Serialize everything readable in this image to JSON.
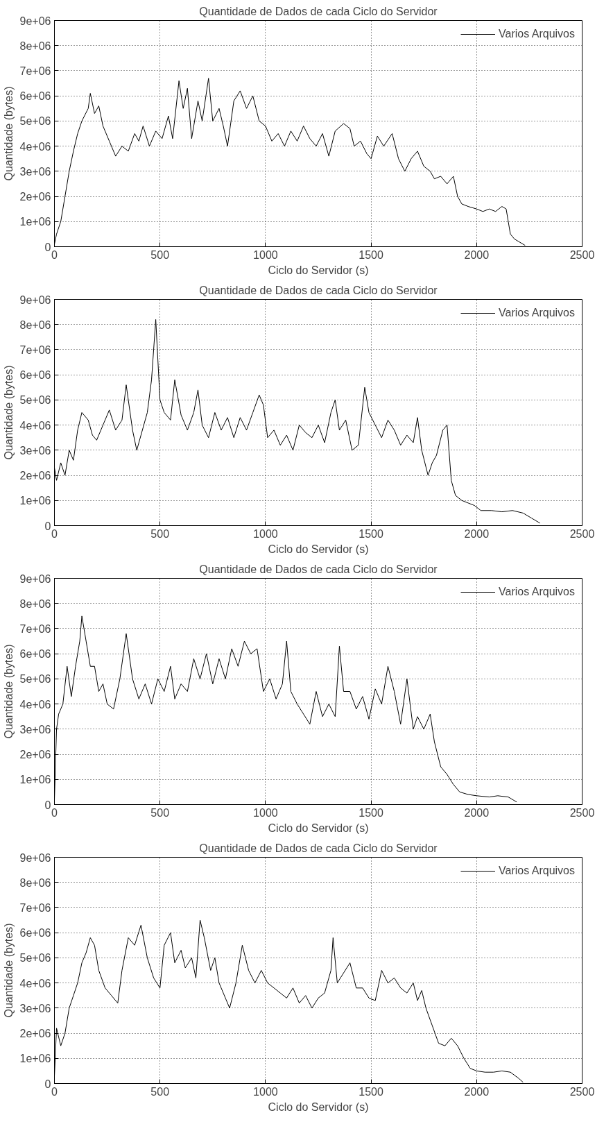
{
  "chart_data": [
    {
      "type": "line",
      "title": "Quantidade de Dados de cada Ciclo do Servidor",
      "xlabel": "Ciclo do Servidor (s)",
      "ylabel": "Quantidade (bytes)",
      "xlim": [
        0,
        2500
      ],
      "ylim": [
        0,
        9000000
      ],
      "xticks": [
        0,
        500,
        1000,
        1500,
        2000,
        2500
      ],
      "yticks": [
        0,
        {
          "value": 1000000,
          "label": "1e+06"
        },
        {
          "value": 2000000,
          "label": "2e+06"
        },
        {
          "value": 3000000,
          "label": "3e+06"
        },
        {
          "value": 4000000,
          "label": "4e+06"
        },
        {
          "value": 5000000,
          "label": "5e+06"
        },
        {
          "value": 6000000,
          "label": "6e+06"
        },
        {
          "value": 7000000,
          "label": "7e+06"
        },
        {
          "value": 8000000,
          "label": "8e+06"
        },
        {
          "value": 9000000,
          "label": "9e+06"
        }
      ],
      "grid": true,
      "legend": "top right",
      "line_style": "solid",
      "series": [
        {
          "name": "Varios Arquivos",
          "color": "#000000",
          "x": [
            0,
            10,
            30,
            50,
            70,
            90,
            110,
            130,
            160,
            170,
            190,
            210,
            230,
            260,
            290,
            320,
            350,
            380,
            400,
            420,
            450,
            480,
            510,
            540,
            560,
            590,
            610,
            630,
            650,
            680,
            700,
            730,
            750,
            780,
            800,
            820,
            850,
            880,
            910,
            940,
            970,
            1000,
            1030,
            1060,
            1090,
            1120,
            1150,
            1180,
            1210,
            1240,
            1270,
            1300,
            1330,
            1370,
            1400,
            1420,
            1450,
            1480,
            1500,
            1530,
            1560,
            1600,
            1630,
            1660,
            1690,
            1720,
            1750,
            1780,
            1800,
            1830,
            1860,
            1890,
            1910,
            1930,
            1960,
            2000,
            2030,
            2060,
            2090,
            2120,
            2140,
            2160,
            2180,
            2200,
            2230
          ],
          "values": [
            100000,
            500000,
            1000000,
            2000000,
            3000000,
            3800000,
            4500000,
            5000000,
            5500000,
            6100000,
            5300000,
            5600000,
            4800000,
            4200000,
            3600000,
            4000000,
            3800000,
            4500000,
            4200000,
            4800000,
            4000000,
            4600000,
            4300000,
            5200000,
            4300000,
            6600000,
            5500000,
            6300000,
            4300000,
            5800000,
            5000000,
            6700000,
            5000000,
            5500000,
            4800000,
            4000000,
            5800000,
            6200000,
            5500000,
            6000000,
            5000000,
            4800000,
            4200000,
            4500000,
            4000000,
            4600000,
            4200000,
            4800000,
            4300000,
            4000000,
            4500000,
            3600000,
            4600000,
            4900000,
            4700000,
            4000000,
            4200000,
            3700000,
            3500000,
            4400000,
            4000000,
            4500000,
            3500000,
            3000000,
            3500000,
            3800000,
            3200000,
            3000000,
            2700000,
            2800000,
            2500000,
            2800000,
            2000000,
            1700000,
            1600000,
            1500000,
            1400000,
            1500000,
            1400000,
            1600000,
            1500000,
            500000,
            300000,
            200000,
            50000
          ]
        }
      ]
    },
    {
      "type": "line",
      "title": "Quantidade de Dados de cada Ciclo do Servidor",
      "xlabel": "Ciclo do Servidor (s)",
      "ylabel": "Quantidade (bytes)",
      "xlim": [
        0,
        2500
      ],
      "ylim": [
        0,
        9000000
      ],
      "xticks": [
        0,
        500,
        1000,
        1500,
        2000,
        2500
      ],
      "yticks": [
        0,
        {
          "value": 1000000,
          "label": "1e+06"
        },
        {
          "value": 2000000,
          "label": "2e+06"
        },
        {
          "value": 3000000,
          "label": "3e+06"
        },
        {
          "value": 4000000,
          "label": "4e+06"
        },
        {
          "value": 5000000,
          "label": "5e+06"
        },
        {
          "value": 6000000,
          "label": "6e+06"
        },
        {
          "value": 7000000,
          "label": "7e+06"
        },
        {
          "value": 8000000,
          "label": "8e+06"
        },
        {
          "value": 9000000,
          "label": "9e+06"
        }
      ],
      "grid": true,
      "legend": "top right",
      "line_style": "solid",
      "series": [
        {
          "name": "Varios Arquivos",
          "color": "#000000",
          "x": [
            0,
            10,
            30,
            50,
            70,
            90,
            110,
            130,
            160,
            180,
            200,
            230,
            260,
            290,
            320,
            340,
            370,
            390,
            410,
            440,
            460,
            480,
            500,
            520,
            550,
            570,
            600,
            630,
            660,
            680,
            700,
            730,
            760,
            790,
            820,
            850,
            880,
            910,
            940,
            970,
            990,
            1010,
            1040,
            1070,
            1100,
            1130,
            1160,
            1190,
            1220,
            1250,
            1280,
            1310,
            1330,
            1350,
            1380,
            1410,
            1440,
            1470,
            1490,
            1520,
            1550,
            1580,
            1610,
            1640,
            1670,
            1700,
            1720,
            1740,
            1770,
            1790,
            1810,
            1840,
            1860,
            1880,
            1900,
            1930,
            1960,
            1990,
            2020,
            2070,
            2120,
            2170,
            2220,
            2260,
            2300
          ],
          "values": [
            2300000,
            1800000,
            2500000,
            2000000,
            3000000,
            2600000,
            3800000,
            4500000,
            4200000,
            3600000,
            3400000,
            4000000,
            4600000,
            3800000,
            4200000,
            5600000,
            3800000,
            3000000,
            3600000,
            4500000,
            5800000,
            8200000,
            5000000,
            4500000,
            4200000,
            5800000,
            4400000,
            3800000,
            4500000,
            5400000,
            4000000,
            3500000,
            4500000,
            3800000,
            4300000,
            3500000,
            4300000,
            3800000,
            4500000,
            5200000,
            4800000,
            3500000,
            3800000,
            3200000,
            3600000,
            3000000,
            4000000,
            3700000,
            3500000,
            4000000,
            3300000,
            4500000,
            5000000,
            3800000,
            4200000,
            3000000,
            3200000,
            5500000,
            4500000,
            4000000,
            3500000,
            4200000,
            3800000,
            3200000,
            3600000,
            3300000,
            4300000,
            3000000,
            2000000,
            2500000,
            2800000,
            3800000,
            4000000,
            1800000,
            1200000,
            1000000,
            900000,
            800000,
            600000,
            600000,
            550000,
            600000,
            500000,
            300000,
            100000
          ]
        }
      ]
    },
    {
      "type": "line",
      "title": "Quantidade de Dados de cada Ciclo do Servidor",
      "xlabel": "Ciclo do Servidor (s)",
      "ylabel": "Quantidade (bytes)",
      "xlim": [
        0,
        2500
      ],
      "ylim": [
        0,
        9000000
      ],
      "xticks": [
        0,
        500,
        1000,
        1500,
        2000,
        2500
      ],
      "yticks": [
        0,
        {
          "value": 1000000,
          "label": "1e+06"
        },
        {
          "value": 2000000,
          "label": "2e+06"
        },
        {
          "value": 3000000,
          "label": "3e+06"
        },
        {
          "value": 4000000,
          "label": "4e+06"
        },
        {
          "value": 5000000,
          "label": "5e+06"
        },
        {
          "value": 6000000,
          "label": "6e+06"
        },
        {
          "value": 7000000,
          "label": "7e+06"
        },
        {
          "value": 8000000,
          "label": "8e+06"
        },
        {
          "value": 9000000,
          "label": "9e+06"
        }
      ],
      "grid": true,
      "legend": "top right",
      "line_style": "solid",
      "series": [
        {
          "name": "Varios Arquivos",
          "color": "#000000",
          "x": [
            0,
            10,
            20,
            40,
            60,
            80,
            100,
            120,
            130,
            150,
            170,
            190,
            210,
            230,
            250,
            280,
            310,
            340,
            370,
            400,
            430,
            460,
            490,
            520,
            550,
            570,
            600,
            630,
            660,
            690,
            720,
            750,
            780,
            810,
            840,
            870,
            900,
            930,
            960,
            990,
            1020,
            1050,
            1080,
            1100,
            1120,
            1150,
            1180,
            1210,
            1240,
            1270,
            1300,
            1330,
            1350,
            1370,
            1400,
            1430,
            1460,
            1490,
            1520,
            1550,
            1580,
            1610,
            1640,
            1670,
            1700,
            1720,
            1750,
            1780,
            1800,
            1830,
            1860,
            1890,
            1920,
            1960,
            2000,
            2060,
            2100,
            2150,
            2190
          ],
          "values": [
            200000,
            3000000,
            3600000,
            4000000,
            5500000,
            4300000,
            5500000,
            6500000,
            7500000,
            6500000,
            5500000,
            5500000,
            4500000,
            4800000,
            4000000,
            3800000,
            5000000,
            6800000,
            5000000,
            4200000,
            4800000,
            4000000,
            5000000,
            4500000,
            5500000,
            4200000,
            4800000,
            4500000,
            5800000,
            5000000,
            6000000,
            4800000,
            5800000,
            5000000,
            6200000,
            5500000,
            6500000,
            6000000,
            6200000,
            4500000,
            5000000,
            4200000,
            4800000,
            6500000,
            4500000,
            4000000,
            3600000,
            3200000,
            4500000,
            3500000,
            4000000,
            3500000,
            6300000,
            4500000,
            4500000,
            3800000,
            4300000,
            3400000,
            4600000,
            4000000,
            5500000,
            4500000,
            3200000,
            5000000,
            3000000,
            3500000,
            3000000,
            3600000,
            2500000,
            1500000,
            1200000,
            800000,
            500000,
            400000,
            350000,
            300000,
            350000,
            300000,
            100000
          ]
        }
      ]
    },
    {
      "type": "line",
      "title": "Quantidade de Dados de cada Ciclo do Servidor",
      "xlabel": "Ciclo do Servidor (s)",
      "ylabel": "Quantidade (bytes)",
      "xlim": [
        0,
        2500
      ],
      "ylim": [
        0,
        9000000
      ],
      "xticks": [
        0,
        500,
        1000,
        1500,
        2000,
        2500
      ],
      "yticks": [
        0,
        {
          "value": 1000000,
          "label": "1e+06"
        },
        {
          "value": 2000000,
          "label": "2e+06"
        },
        {
          "value": 3000000,
          "label": "3e+06"
        },
        {
          "value": 4000000,
          "label": "4e+06"
        },
        {
          "value": 5000000,
          "label": "5e+06"
        },
        {
          "value": 6000000,
          "label": "6e+06"
        },
        {
          "value": 7000000,
          "label": "7e+06"
        },
        {
          "value": 8000000,
          "label": "8e+06"
        },
        {
          "value": 9000000,
          "label": "9e+06"
        }
      ],
      "grid": true,
      "legend": "top right",
      "line_style": "solid",
      "series": [
        {
          "name": "Varios Arquivos",
          "color": "#000000",
          "x": [
            0,
            10,
            30,
            50,
            70,
            90,
            110,
            130,
            150,
            170,
            190,
            210,
            240,
            270,
            300,
            320,
            350,
            380,
            410,
            440,
            470,
            500,
            520,
            550,
            570,
            600,
            620,
            650,
            670,
            690,
            710,
            740,
            760,
            780,
            800,
            830,
            860,
            890,
            920,
            950,
            980,
            1010,
            1040,
            1070,
            1100,
            1130,
            1160,
            1190,
            1220,
            1250,
            1280,
            1310,
            1320,
            1340,
            1370,
            1400,
            1430,
            1460,
            1490,
            1520,
            1550,
            1580,
            1610,
            1640,
            1670,
            1700,
            1720,
            1740,
            1760,
            1790,
            1820,
            1850,
            1880,
            1910,
            1940,
            1970,
            2000,
            2040,
            2080,
            2120,
            2160,
            2200,
            2220
          ],
          "values": [
            300000,
            2200000,
            1500000,
            2000000,
            3000000,
            3500000,
            4000000,
            4800000,
            5200000,
            5800000,
            5500000,
            4500000,
            3800000,
            3500000,
            3200000,
            4500000,
            5800000,
            5500000,
            6300000,
            5000000,
            4200000,
            3800000,
            5500000,
            6000000,
            4800000,
            5300000,
            4600000,
            5000000,
            4200000,
            6500000,
            5800000,
            4500000,
            5000000,
            4000000,
            3600000,
            3000000,
            4000000,
            5500000,
            4500000,
            4000000,
            4500000,
            4000000,
            3800000,
            3600000,
            3400000,
            3800000,
            3200000,
            3500000,
            3000000,
            3400000,
            3600000,
            4500000,
            5800000,
            4000000,
            4400000,
            4800000,
            3800000,
            3800000,
            3400000,
            3300000,
            4500000,
            4000000,
            4200000,
            3800000,
            3600000,
            4000000,
            3300000,
            3700000,
            3000000,
            2300000,
            1600000,
            1500000,
            1800000,
            1500000,
            1000000,
            600000,
            500000,
            450000,
            450000,
            500000,
            450000,
            200000,
            50000
          ]
        }
      ]
    }
  ]
}
